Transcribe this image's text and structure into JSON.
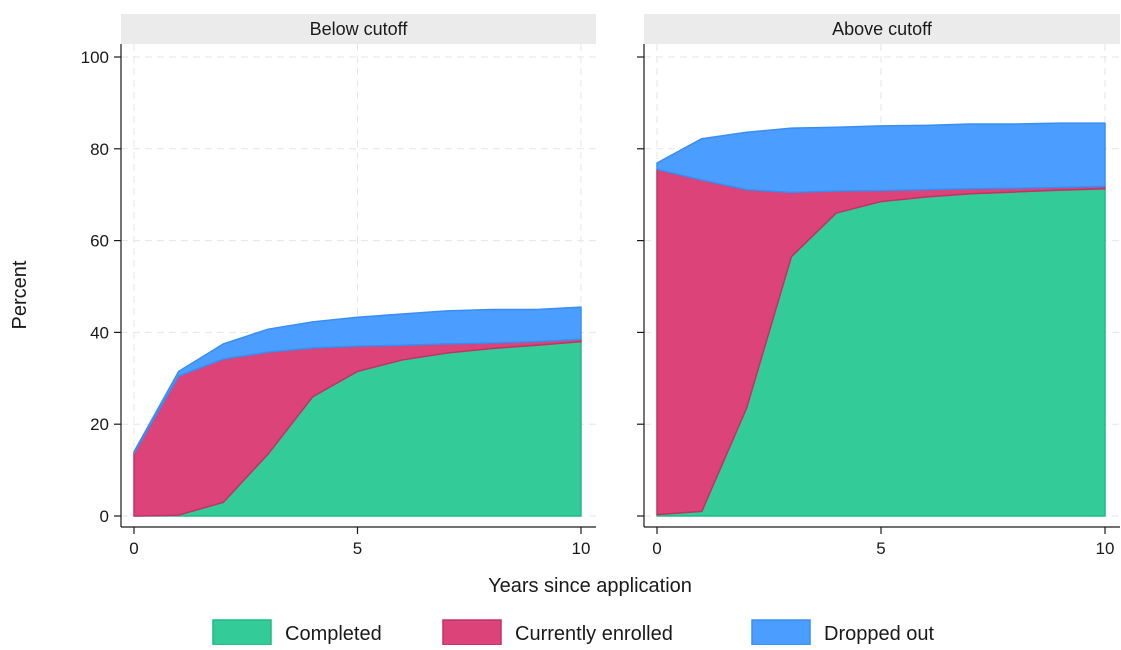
{
  "chart_data": {
    "type": "area",
    "stacked": true,
    "xlabel": "Years since application",
    "ylabel": "Percent",
    "xlim": [
      0,
      10
    ],
    "ylim": [
      0,
      100
    ],
    "xticks": [
      "0",
      "5",
      "10"
    ],
    "yticks": [
      "0",
      "20",
      "40",
      "60",
      "80",
      "100"
    ],
    "grid": true,
    "legend_position": "bottom",
    "series_styles": [
      {
        "name": "Completed",
        "color": "#33cc99",
        "stroke": "#23b884"
      },
      {
        "name": "Currently enrolled",
        "color": "#dc4379",
        "stroke": "#c23265"
      },
      {
        "name": "Dropped out",
        "color": "#4b9dff",
        "stroke": "#3a8ef2"
      }
    ],
    "panels": [
      {
        "title": "Below cutoff",
        "x": [
          0,
          1,
          2,
          3,
          4,
          5,
          6,
          7,
          8,
          9,
          10
        ],
        "series": [
          {
            "name": "Completed",
            "values": [
              0,
              0.2,
              3,
              13.5,
              26,
              31.5,
              34,
              35.5,
              36.5,
              37.2,
              38
            ]
          },
          {
            "name": "Currently enrolled",
            "values": [
              13.7,
              30.3,
              31.2,
              22.2,
              10.6,
              5.5,
              3.2,
              2,
              1.2,
              0.8,
              0.5
            ]
          },
          {
            "name": "Dropped out",
            "values": [
              0.3,
              1,
              3.3,
              5,
              5.7,
              6.3,
              6.8,
              7.2,
              7.3,
              7,
              7
            ]
          }
        ]
      },
      {
        "title": "Above cutoff",
        "x": [
          0,
          1,
          2,
          3,
          4,
          5,
          6,
          7,
          8,
          9,
          10
        ],
        "series": [
          {
            "name": "Completed",
            "values": [
              0.3,
              1,
              23.5,
              56.5,
              66,
              68.5,
              69.5,
              70.2,
              70.6,
              71,
              71.3
            ]
          },
          {
            "name": "Currently enrolled",
            "values": [
              75.2,
              72.2,
              47.6,
              14,
              4.8,
              2.4,
              1.6,
              1.1,
              0.8,
              0.6,
              0.5
            ]
          },
          {
            "name": "Dropped out",
            "values": [
              1.4,
              9,
              12.5,
              14,
              13.9,
              14.1,
              14,
              14.1,
              14,
              14,
              13.8
            ]
          }
        ]
      }
    ]
  }
}
